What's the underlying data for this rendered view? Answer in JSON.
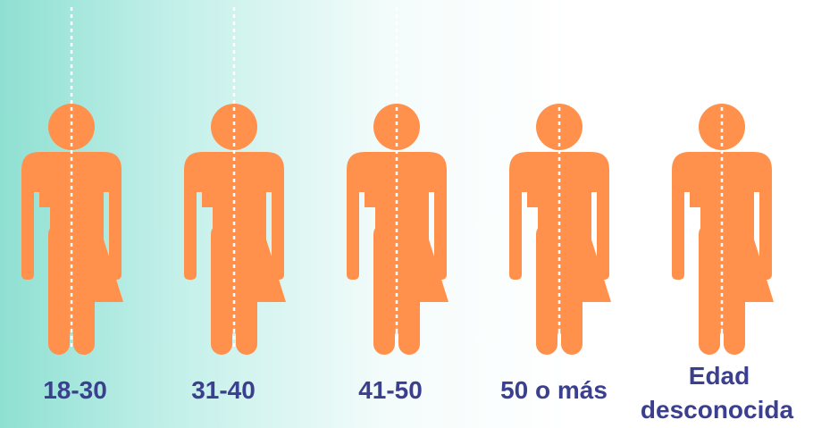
{
  "colors": {
    "figure": "#ff914d",
    "divider": "#ffffff",
    "label": "#3b3f8f",
    "background_left": "#8fe0d2",
    "background_right": "#ffffff"
  },
  "figures": [
    {
      "icon": "gender-neutral-person-icon",
      "label": "18-30"
    },
    {
      "icon": "gender-neutral-person-icon",
      "label": "31-40"
    },
    {
      "icon": "gender-neutral-person-icon",
      "label": "41-50"
    },
    {
      "icon": "gender-neutral-person-icon",
      "label": "50 o más"
    },
    {
      "icon": "gender-neutral-person-icon",
      "label_lines": [
        "Edad",
        "desconocida"
      ]
    }
  ]
}
